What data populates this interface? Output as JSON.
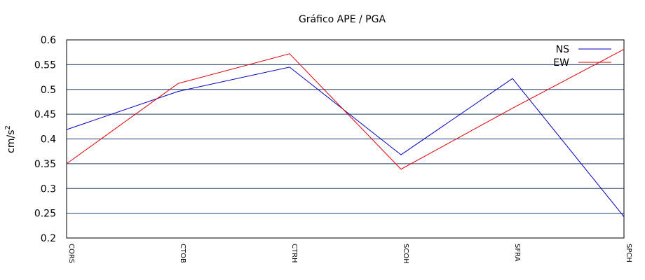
{
  "chart_data": {
    "type": "line",
    "title": "Gráfico  APE / PGA",
    "ylabel": "cm/s",
    "ylabel_superscript": "2",
    "xlabel": "",
    "categories": [
      "CORS",
      "CTOB",
      "CTRH",
      "SCOH",
      "SFRA",
      "SPCH"
    ],
    "ylim": [
      0.2,
      0.6
    ],
    "yticks": [
      "0.2",
      "0.25",
      "0.3",
      "0.35",
      "0.4",
      "0.45",
      "0.5",
      "0.55",
      "0.6"
    ],
    "grid": true,
    "legend_position": "top-right",
    "series": [
      {
        "name": "NS",
        "color": "#0000bb",
        "values": [
          0.419,
          0.496,
          0.545,
          0.368,
          0.522,
          0.243
        ]
      },
      {
        "name": "EW",
        "color": "#dd0000",
        "values": [
          0.35,
          0.512,
          0.572,
          0.339,
          0.462,
          0.581
        ]
      }
    ],
    "grid_color": "#1f3f73"
  }
}
